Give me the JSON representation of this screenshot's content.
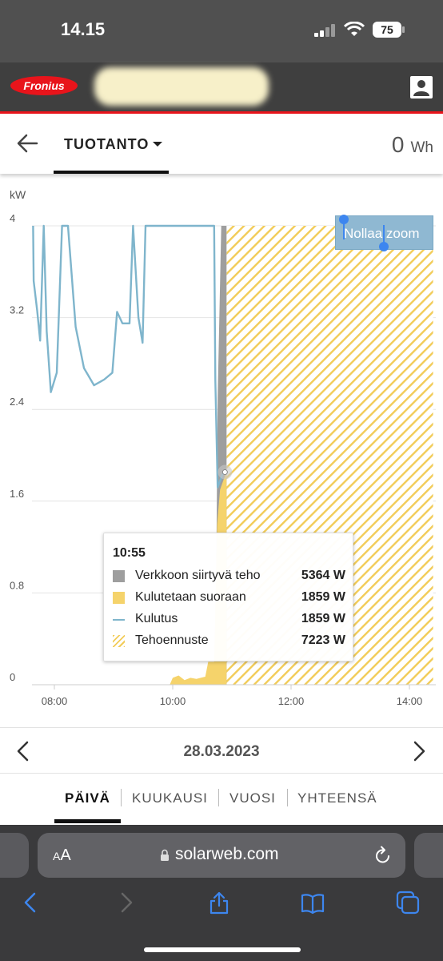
{
  "status_bar": {
    "time": "14.15",
    "battery": "75"
  },
  "app": {
    "brand": "Fronius"
  },
  "header": {
    "tab_title": "TUOTANTO",
    "energy_value": "0",
    "energy_unit": "Wh"
  },
  "colors": {
    "feed_in": "#9e9e9e",
    "direct_consumption": "#f5d36b",
    "consumption_line": "#7fb5cc",
    "forecast_hatch": "#f2cc58",
    "brand_red": "#e8141b"
  },
  "chart_data": {
    "type": "area",
    "ylabel": "kW",
    "yticks": [
      "4",
      "3.2",
      "2.4",
      "1.6",
      "0.8",
      "0"
    ],
    "ylim": [
      0,
      4
    ],
    "xticks": [
      "08:00",
      "10:00",
      "12:00",
      "14:00"
    ],
    "grid": true,
    "series": [
      {
        "name": "Kulutus",
        "type": "line",
        "points": [
          [
            7.64,
            4
          ],
          [
            7.65,
            3.52
          ],
          [
            7.71,
            3.26
          ],
          [
            7.76,
            3.0
          ],
          [
            7.82,
            4
          ],
          [
            7.87,
            3.08
          ],
          [
            7.94,
            2.55
          ],
          [
            8.04,
            2.72
          ],
          [
            8.13,
            4
          ],
          [
            8.23,
            4
          ],
          [
            8.33,
            3.32
          ],
          [
            8.36,
            3.12
          ],
          [
            8.5,
            2.76
          ],
          [
            8.67,
            2.61
          ],
          [
            8.84,
            2.66
          ],
          [
            8.98,
            2.72
          ],
          [
            9.06,
            3.25
          ],
          [
            9.15,
            3.15
          ],
          [
            9.27,
            3.15
          ],
          [
            9.33,
            4
          ],
          [
            9.42,
            3.2
          ],
          [
            9.49,
            2.98
          ],
          [
            9.54,
            4
          ],
          [
            10.7,
            4
          ],
          [
            10.72,
            2.65
          ],
          [
            10.76,
            1.72
          ],
          [
            10.86,
            1.86
          ],
          [
            10.91,
            1.86
          ]
        ]
      },
      {
        "name": "Kulutetaan suoraan",
        "type": "area",
        "points": [
          [
            9.95,
            0
          ],
          [
            10.0,
            0.06
          ],
          [
            10.1,
            0.08
          ],
          [
            10.2,
            0.04
          ],
          [
            10.3,
            0.06
          ],
          [
            10.4,
            0.05
          ],
          [
            10.55,
            0.07
          ],
          [
            10.6,
            0.2
          ],
          [
            10.7,
            0.2
          ],
          [
            10.75,
            1.4
          ],
          [
            10.8,
            1.7
          ],
          [
            10.91,
            1.86
          ]
        ]
      },
      {
        "name": "Verkkoon siirtyvä teho",
        "type": "area",
        "points": [
          [
            10.72,
            0
          ],
          [
            10.76,
            2.5
          ],
          [
            10.82,
            4
          ],
          [
            10.91,
            4
          ]
        ]
      },
      {
        "name": "Tehoennuste",
        "type": "hatched-area",
        "x_start": 10.91,
        "x_end": 14.4,
        "top": 4
      }
    ],
    "tooltip": {
      "time": "10:55",
      "rows": [
        {
          "label": "Verkkoon siirtyvä teho",
          "value": "5364 W"
        },
        {
          "label": "Kulutetaan suoraan",
          "value": "1859 W"
        },
        {
          "label": "Kulutus",
          "value": "1859 W"
        },
        {
          "label": "Tehoennuste",
          "value": "7223 W"
        }
      ]
    },
    "zoom_reset_label": "Nollaa zoom"
  },
  "date_nav": {
    "date": "28.03.2023"
  },
  "periods": [
    "PÄIVÄ",
    "KUUKAUSI",
    "VUOSI",
    "YHTEENSÄ"
  ],
  "browser": {
    "aa_small": "A",
    "aa_big": "A",
    "url": "solarweb.com"
  }
}
